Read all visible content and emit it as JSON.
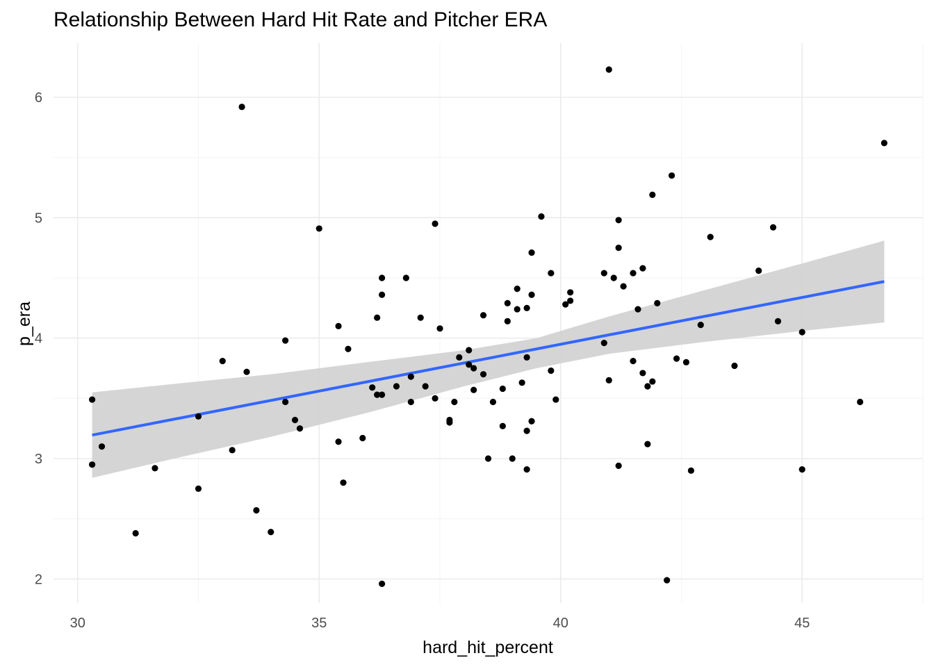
{
  "chart_data": {
    "type": "scatter",
    "title": "Relationship Between Hard Hit Rate and Pitcher ERA",
    "xlabel": "hard_hit_percent",
    "ylabel": "p_era",
    "xlim": [
      29.5,
      47.5
    ],
    "ylim": [
      1.8,
      6.45
    ],
    "x_ticks": [
      30,
      35,
      40,
      45
    ],
    "y_ticks": [
      2,
      3,
      4,
      5,
      6
    ],
    "grid": true,
    "points": [
      {
        "x": 30.3,
        "y": 3.49
      },
      {
        "x": 30.3,
        "y": 2.95
      },
      {
        "x": 30.5,
        "y": 3.1
      },
      {
        "x": 31.2,
        "y": 2.38
      },
      {
        "x": 31.6,
        "y": 2.92
      },
      {
        "x": 32.5,
        "y": 3.35
      },
      {
        "x": 32.5,
        "y": 2.75
      },
      {
        "x": 33.0,
        "y": 3.81
      },
      {
        "x": 33.2,
        "y": 3.07
      },
      {
        "x": 33.4,
        "y": 5.92
      },
      {
        "x": 33.5,
        "y": 3.72
      },
      {
        "x": 33.7,
        "y": 2.57
      },
      {
        "x": 34.0,
        "y": 2.39
      },
      {
        "x": 34.3,
        "y": 3.98
      },
      {
        "x": 34.3,
        "y": 3.47
      },
      {
        "x": 34.5,
        "y": 3.32
      },
      {
        "x": 34.6,
        "y": 3.25
      },
      {
        "x": 35.0,
        "y": 4.91
      },
      {
        "x": 35.4,
        "y": 4.1
      },
      {
        "x": 35.4,
        "y": 3.14
      },
      {
        "x": 35.5,
        "y": 2.8
      },
      {
        "x": 35.6,
        "y": 3.91
      },
      {
        "x": 35.9,
        "y": 3.17
      },
      {
        "x": 36.1,
        "y": 3.59
      },
      {
        "x": 36.2,
        "y": 4.17
      },
      {
        "x": 36.2,
        "y": 3.53
      },
      {
        "x": 36.3,
        "y": 4.5
      },
      {
        "x": 36.3,
        "y": 4.36
      },
      {
        "x": 36.3,
        "y": 3.53
      },
      {
        "x": 36.3,
        "y": 1.96
      },
      {
        "x": 36.6,
        "y": 3.6
      },
      {
        "x": 36.8,
        "y": 4.5
      },
      {
        "x": 36.9,
        "y": 3.68
      },
      {
        "x": 36.9,
        "y": 3.47
      },
      {
        "x": 37.1,
        "y": 4.17
      },
      {
        "x": 37.2,
        "y": 3.6
      },
      {
        "x": 37.4,
        "y": 4.95
      },
      {
        "x": 37.4,
        "y": 3.5
      },
      {
        "x": 37.5,
        "y": 4.08
      },
      {
        "x": 37.7,
        "y": 3.32
      },
      {
        "x": 37.7,
        "y": 3.3
      },
      {
        "x": 37.8,
        "y": 3.47
      },
      {
        "x": 37.9,
        "y": 3.84
      },
      {
        "x": 38.1,
        "y": 3.9
      },
      {
        "x": 38.1,
        "y": 3.78
      },
      {
        "x": 38.2,
        "y": 3.75
      },
      {
        "x": 38.2,
        "y": 3.57
      },
      {
        "x": 38.4,
        "y": 4.19
      },
      {
        "x": 38.4,
        "y": 3.7
      },
      {
        "x": 38.5,
        "y": 3.0
      },
      {
        "x": 38.6,
        "y": 3.47
      },
      {
        "x": 38.8,
        "y": 3.58
      },
      {
        "x": 38.8,
        "y": 3.27
      },
      {
        "x": 38.9,
        "y": 4.29
      },
      {
        "x": 38.9,
        "y": 4.14
      },
      {
        "x": 39.0,
        "y": 3.0
      },
      {
        "x": 39.1,
        "y": 4.41
      },
      {
        "x": 39.1,
        "y": 4.24
      },
      {
        "x": 39.2,
        "y": 3.63
      },
      {
        "x": 39.3,
        "y": 4.25
      },
      {
        "x": 39.3,
        "y": 3.84
      },
      {
        "x": 39.3,
        "y": 3.23
      },
      {
        "x": 39.3,
        "y": 2.91
      },
      {
        "x": 39.4,
        "y": 4.71
      },
      {
        "x": 39.4,
        "y": 4.36
      },
      {
        "x": 39.4,
        "y": 3.31
      },
      {
        "x": 39.6,
        "y": 5.01
      },
      {
        "x": 39.8,
        "y": 4.54
      },
      {
        "x": 39.8,
        "y": 3.73
      },
      {
        "x": 39.9,
        "y": 3.49
      },
      {
        "x": 40.1,
        "y": 4.28
      },
      {
        "x": 40.2,
        "y": 4.38
      },
      {
        "x": 40.2,
        "y": 4.31
      },
      {
        "x": 40.9,
        "y": 4.54
      },
      {
        "x": 40.9,
        "y": 3.96
      },
      {
        "x": 41.0,
        "y": 6.23
      },
      {
        "x": 41.0,
        "y": 3.65
      },
      {
        "x": 41.1,
        "y": 4.5
      },
      {
        "x": 41.2,
        "y": 4.98
      },
      {
        "x": 41.2,
        "y": 4.75
      },
      {
        "x": 41.2,
        "y": 2.94
      },
      {
        "x": 41.3,
        "y": 4.43
      },
      {
        "x": 41.5,
        "y": 4.54
      },
      {
        "x": 41.5,
        "y": 3.81
      },
      {
        "x": 41.6,
        "y": 4.24
      },
      {
        "x": 41.7,
        "y": 4.58
      },
      {
        "x": 41.7,
        "y": 3.71
      },
      {
        "x": 41.8,
        "y": 3.6
      },
      {
        "x": 41.8,
        "y": 3.12
      },
      {
        "x": 41.9,
        "y": 5.19
      },
      {
        "x": 41.9,
        "y": 3.64
      },
      {
        "x": 42.0,
        "y": 4.29
      },
      {
        "x": 42.2,
        "y": 1.99
      },
      {
        "x": 42.3,
        "y": 5.35
      },
      {
        "x": 42.4,
        "y": 3.83
      },
      {
        "x": 42.6,
        "y": 3.8
      },
      {
        "x": 42.7,
        "y": 2.9
      },
      {
        "x": 42.9,
        "y": 4.11
      },
      {
        "x": 43.1,
        "y": 4.84
      },
      {
        "x": 43.6,
        "y": 3.77
      },
      {
        "x": 44.1,
        "y": 4.56
      },
      {
        "x": 44.4,
        "y": 4.92
      },
      {
        "x": 44.5,
        "y": 4.14
      },
      {
        "x": 45.0,
        "y": 4.05
      },
      {
        "x": 45.0,
        "y": 2.91
      },
      {
        "x": 46.2,
        "y": 3.47
      },
      {
        "x": 46.7,
        "y": 5.62
      }
    ],
    "trend_line": {
      "x_start": 30.3,
      "x_end": 46.7,
      "y_start": 3.195,
      "y_end": 4.47
    },
    "confidence_band": {
      "x": [
        30.3,
        32,
        34,
        36,
        38,
        39.5,
        41,
        43,
        45,
        46.7
      ],
      "upper": [
        3.55,
        3.62,
        3.7,
        3.8,
        3.9,
        4.0,
        4.18,
        4.4,
        4.62,
        4.81
      ],
      "lower": [
        2.84,
        3.0,
        3.18,
        3.38,
        3.6,
        3.75,
        3.87,
        3.97,
        4.06,
        4.13
      ]
    },
    "colors": {
      "point": "#000000",
      "trend_line": "#3366ff",
      "band": "#d3d3d3",
      "grid_major": "#ebebeb",
      "grid_minor": "#f5f5f5"
    }
  }
}
